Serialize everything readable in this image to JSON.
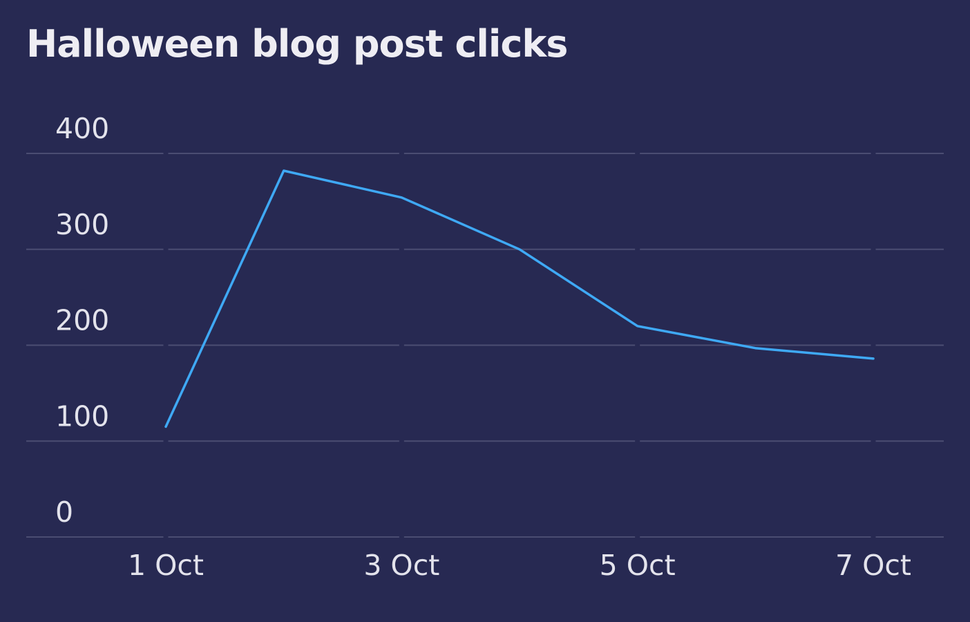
{
  "colors": {
    "background": "#272952",
    "line": "#3fa9f5",
    "grid": "#4b4d72",
    "text": "#eeedf3"
  },
  "chart_data": {
    "type": "line",
    "title": "Halloween blog post clicks",
    "xlabel": "",
    "ylabel": "",
    "x": [
      "1 Oct",
      "2 Oct",
      "3 Oct",
      "4 Oct",
      "5 Oct",
      "6 Oct",
      "7 Oct"
    ],
    "x_tick_labels": [
      "1 Oct",
      "3 Oct",
      "5 Oct",
      "7 Oct"
    ],
    "y_ticks": [
      0,
      100,
      200,
      300,
      400
    ],
    "ylim": [
      0,
      400
    ],
    "grid": true,
    "legend": "none",
    "series": [
      {
        "values": [
          115,
          382,
          354,
          300,
          220,
          197,
          186
        ]
      }
    ]
  }
}
